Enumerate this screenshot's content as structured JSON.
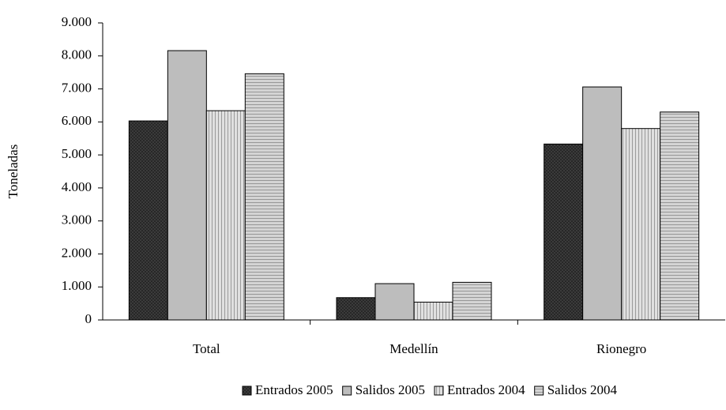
{
  "chart_data": {
    "type": "bar",
    "y_label": "Toneladas",
    "categories": [
      "Total",
      "Medellín",
      "Rionegro"
    ],
    "series": [
      {
        "name": "Entrados 2005",
        "color": "#404040",
        "values": [
          6030,
          676,
          5330
        ]
      },
      {
        "name": "Salidos 2005",
        "color": "#bdbdbd",
        "values": [
          8160,
          1100,
          7060
        ]
      },
      {
        "name": "Entrados 2004",
        "color": "#e0e0e0",
        "values": [
          6340,
          540,
          5800
        ]
      },
      {
        "name": "Salidos 2004",
        "color": "#d4d4d4",
        "values": [
          7460,
          1140,
          6300
        ]
      }
    ],
    "ylim": [
      0,
      9000
    ],
    "yticks": [
      {
        "value": 0,
        "label": "0"
      },
      {
        "value": 1000,
        "label": "1.000"
      },
      {
        "value": 2000,
        "label": "2.000"
      },
      {
        "value": 3000,
        "label": "3.000"
      },
      {
        "value": 4000,
        "label": "4.000"
      },
      {
        "value": 5000,
        "label": "5.000"
      },
      {
        "value": 6000,
        "label": "6.000"
      },
      {
        "value": 7000,
        "label": "7.000"
      },
      {
        "value": 8000,
        "label": "8.000"
      },
      {
        "value": 9000,
        "label": "9.000"
      }
    ],
    "grid": false,
    "legend": "bottom"
  }
}
